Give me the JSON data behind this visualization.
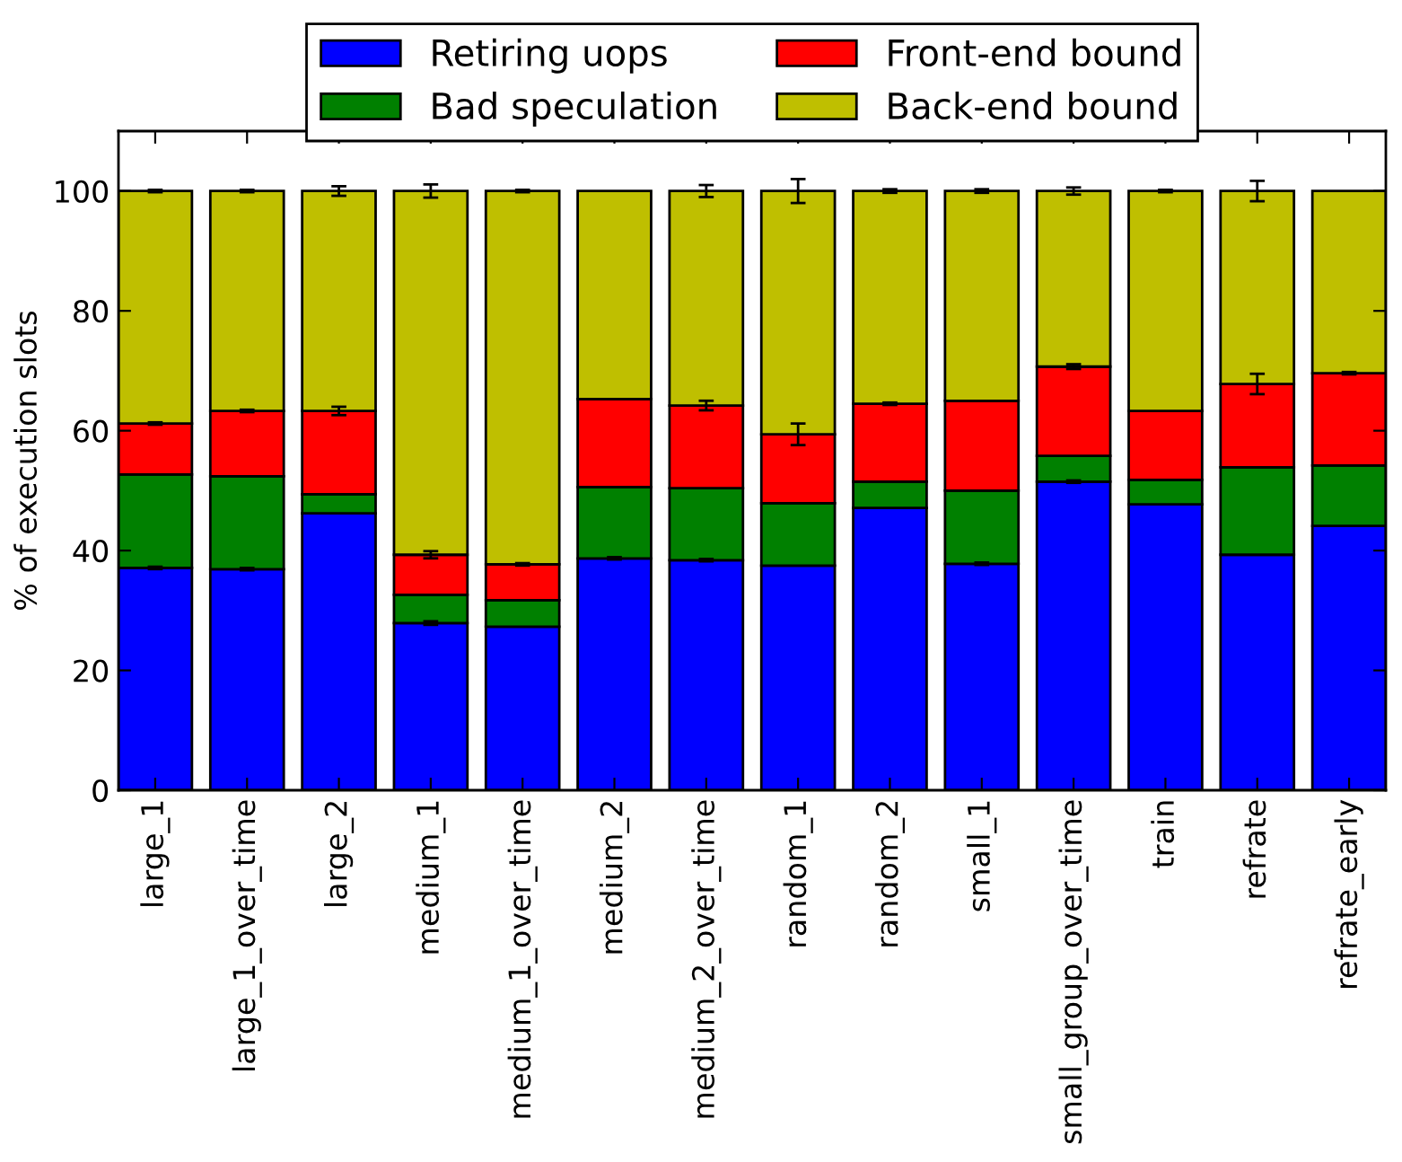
{
  "chart_data": {
    "type": "bar",
    "stacked": true,
    "ylabel": "% of execution slots",
    "categories": [
      "large_1",
      "large_1_over_time",
      "large_2",
      "medium_1",
      "medium_1_over_time",
      "medium_2",
      "medium_2_over_time",
      "random_1",
      "random_2",
      "small_1",
      "small_group_over_time",
      "train",
      "refrate",
      "refrate_early"
    ],
    "series": [
      {
        "name": "Retiring uops",
        "color": "#0000ff",
        "values": [
          37.1,
          36.9,
          46.2,
          27.9,
          27.3,
          38.7,
          38.4,
          37.5,
          47.1,
          37.8,
          51.5,
          47.7,
          39.3,
          44.1
        ],
        "errors": [
          0.2,
          0.2,
          null,
          0.3,
          null,
          0.2,
          0.2,
          null,
          null,
          0.2,
          0.2,
          null,
          null,
          null
        ]
      },
      {
        "name": "Bad speculation",
        "color": "#008000",
        "values": [
          15.6,
          15.5,
          3.2,
          4.7,
          4.4,
          11.9,
          12.0,
          10.4,
          4.4,
          12.2,
          4.3,
          4.1,
          14.6,
          10.1
        ]
      },
      {
        "name": "Front-end bound",
        "color": "#ff0000",
        "values": [
          8.5,
          10.9,
          13.9,
          6.7,
          6.0,
          14.7,
          13.8,
          11.5,
          13.0,
          15.0,
          14.9,
          11.5,
          13.9,
          15.4
        ],
        "errors": [
          0.2,
          0.2,
          0.7,
          0.6,
          0.2,
          null,
          0.8,
          1.8,
          0.2,
          null,
          0.4,
          null,
          1.7,
          0.2
        ]
      },
      {
        "name": "Back-end bound",
        "color": "#bfbf00",
        "values": [
          38.8,
          36.7,
          36.7,
          60.7,
          62.3,
          34.7,
          35.8,
          40.6,
          35.5,
          35.0,
          29.3,
          36.7,
          32.2,
          30.4
        ],
        "errors": [
          0.2,
          0.2,
          0.8,
          1.1,
          0.2,
          null,
          1.0,
          2.0,
          0.3,
          0.3,
          0.6,
          0.2,
          1.7,
          null
        ]
      }
    ],
    "ylim": [
      0,
      110
    ],
    "yticks": [
      0,
      20,
      40,
      60,
      80,
      100
    ],
    "grid": false,
    "legend": "top"
  }
}
